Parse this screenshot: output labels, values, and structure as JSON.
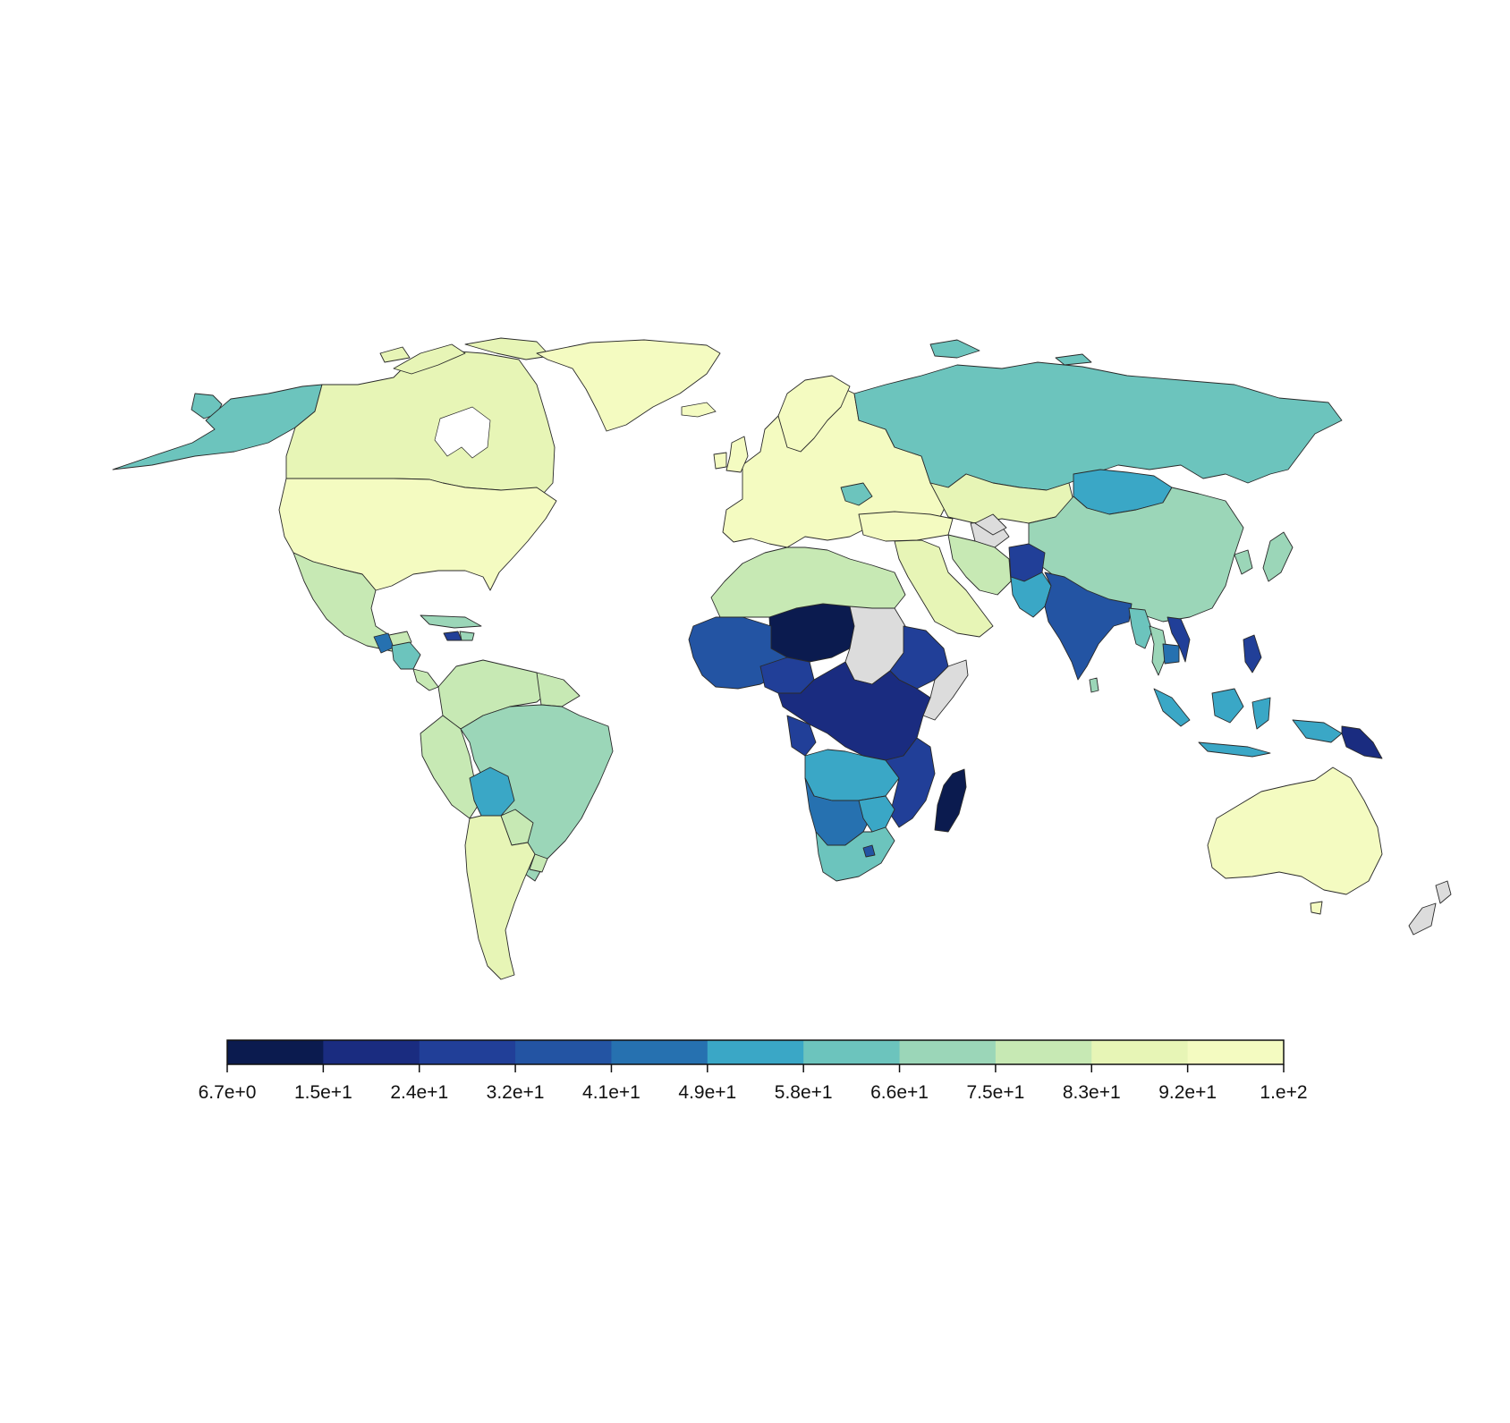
{
  "map": {
    "projection": "Robinson",
    "no_data_color": "#dcdcdc",
    "palette": [
      "#0b1b4f",
      "#1a2c80",
      "#213f98",
      "#2354a3",
      "#2671b0",
      "#3aa7c6",
      "#6cc4bd",
      "#9bd6b8",
      "#c7e9b4",
      "#e7f5b6",
      "#f4fbc1"
    ],
    "regions": [
      {
        "name": "Alaska",
        "bin": 6
      },
      {
        "name": "Canada",
        "bin": 9
      },
      {
        "name": "United States",
        "bin": 10
      },
      {
        "name": "Greenland",
        "bin": 10
      },
      {
        "name": "Mexico",
        "bin": 8
      },
      {
        "name": "Guatemala",
        "bin": 4
      },
      {
        "name": "Honduras",
        "bin": 6
      },
      {
        "name": "Haiti",
        "bin": 2
      },
      {
        "name": "Colombia / Venezuela",
        "bin": 8
      },
      {
        "name": "Peru",
        "bin": 8
      },
      {
        "name": "Brazil",
        "bin": 7
      },
      {
        "name": "Bolivia",
        "bin": 5
      },
      {
        "name": "Paraguay",
        "bin": 8
      },
      {
        "name": "Argentina / Chile",
        "bin": 9
      },
      {
        "name": "Europe",
        "bin": 10
      },
      {
        "name": "Russia",
        "bin": 6
      },
      {
        "name": "Kazakhstan",
        "bin": 9
      },
      {
        "name": "Mongolia",
        "bin": 5
      },
      {
        "name": "China",
        "bin": 7
      },
      {
        "name": "Middle East",
        "bin": 9
      },
      {
        "name": "Iran",
        "bin": 8
      },
      {
        "name": "Afghanistan",
        "bin": 2
      },
      {
        "name": "Pakistan",
        "bin": 5
      },
      {
        "name": "India",
        "bin": 3
      },
      {
        "name": "Myanmar",
        "bin": 6
      },
      {
        "name": "Cambodia",
        "bin": 4
      },
      {
        "name": "Indonesia",
        "bin": 5
      },
      {
        "name": "Papua New Guinea",
        "bin": 1
      },
      {
        "name": "Australia",
        "bin": 10
      },
      {
        "name": "North Africa",
        "bin": 8
      },
      {
        "name": "Sahel",
        "bin": 0
      },
      {
        "name": "West Africa",
        "bin": 3
      },
      {
        "name": "Central Africa",
        "bin": 2
      },
      {
        "name": "East Africa",
        "bin": 1
      },
      {
        "name": "Angola / Zambia",
        "bin": 5
      },
      {
        "name": "Namibia / Botswana",
        "bin": 4
      },
      {
        "name": "South Africa",
        "bin": 6
      },
      {
        "name": "Madagascar",
        "bin": 0
      },
      {
        "name": "Sudan / Somalia / Central Asia",
        "bin": "no-data"
      },
      {
        "name": "New Zealand",
        "bin": "no-data"
      }
    ]
  },
  "colorbar": {
    "tick_labels": [
      "6.7e+0",
      "1.5e+1",
      "2.4e+1",
      "3.2e+1",
      "4.1e+1",
      "4.9e+1",
      "5.8e+1",
      "6.6e+1",
      "7.5e+1",
      "8.3e+1",
      "9.2e+1",
      "1.e+2"
    ]
  }
}
